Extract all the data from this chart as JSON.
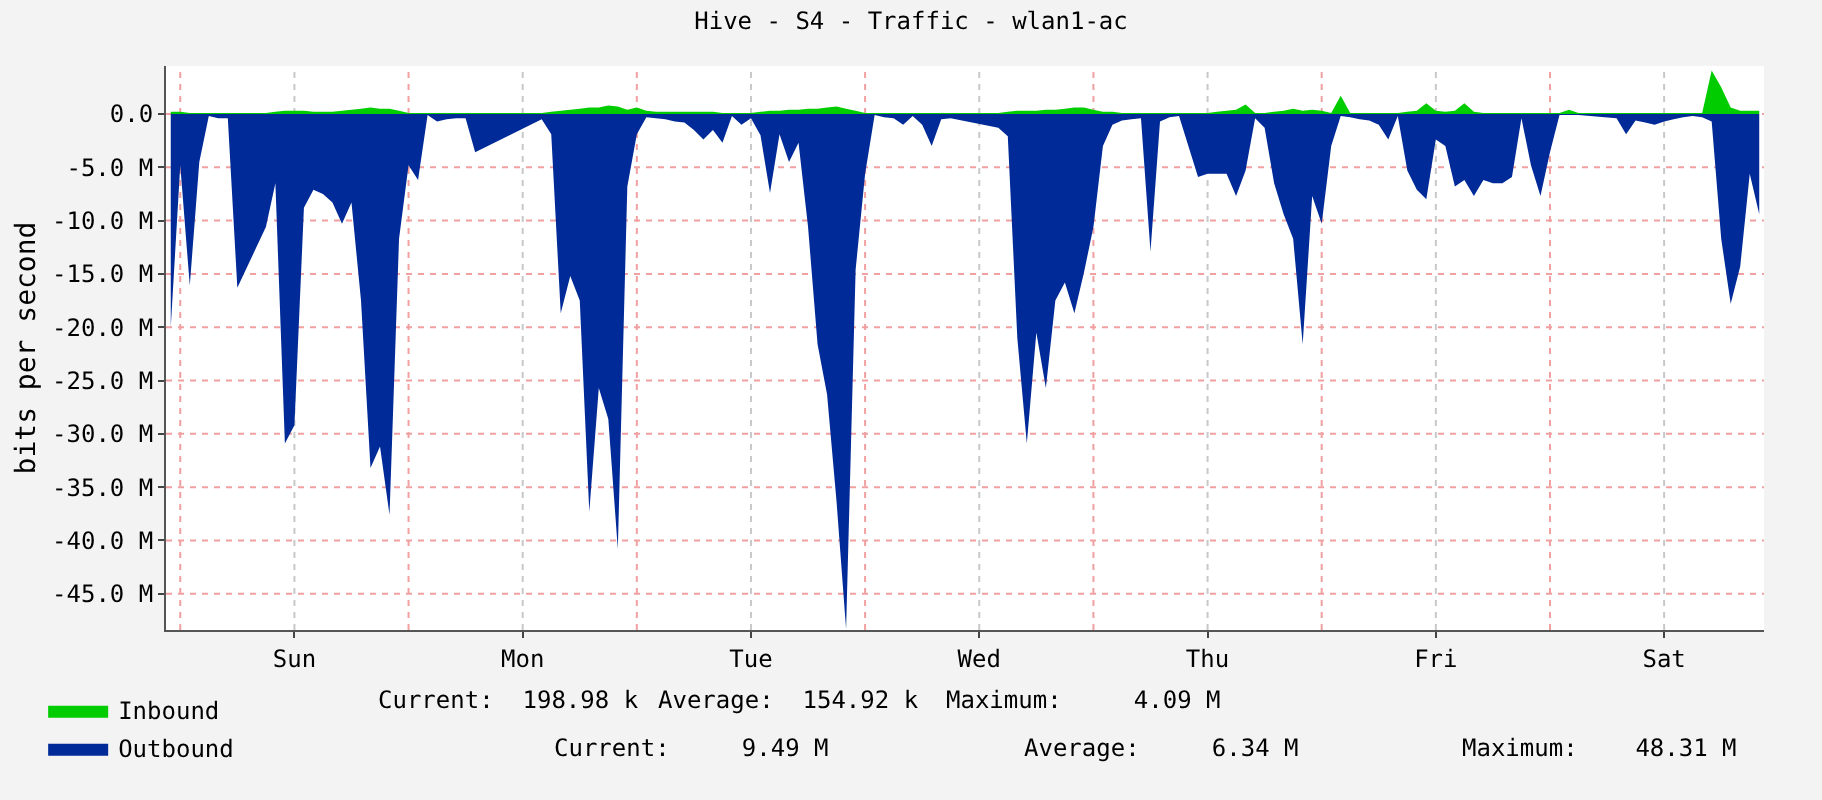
{
  "chart_data": {
    "type": "area",
    "title": "Hive - S4 - Traffic - wlan1-ac",
    "ylabel": "bits per second",
    "ylim": [
      -48.4,
      4.5
    ],
    "categories": [
      null,
      null,
      null,
      null,
      null,
      null,
      null,
      null,
      null,
      null,
      null,
      null,
      null,
      "Sun",
      null,
      null,
      null,
      null,
      null,
      null,
      null,
      null,
      null,
      null,
      null,
      null,
      null,
      null,
      null,
      null,
      null,
      null,
      null,
      null,
      null,
      null,
      null,
      "Mon",
      null,
      null,
      null,
      null,
      null,
      null,
      null,
      null,
      null,
      null,
      null,
      null,
      null,
      null,
      null,
      null,
      null,
      null,
      null,
      null,
      null,
      null,
      null,
      "Tue",
      null,
      null,
      null,
      null,
      null,
      null,
      null,
      null,
      null,
      null,
      null,
      null,
      null,
      null,
      null,
      null,
      null,
      null,
      null,
      null,
      null,
      null,
      null,
      "Wed",
      null,
      null,
      null,
      null,
      null,
      null,
      null,
      null,
      null,
      null,
      null,
      null,
      null,
      null,
      null,
      null,
      null,
      null,
      null,
      null,
      null,
      null,
      null,
      "Thu",
      null,
      null,
      null,
      null,
      null,
      null,
      null,
      null,
      null,
      null,
      null,
      null,
      null,
      null,
      null,
      null,
      null,
      null,
      null,
      null,
      null,
      null,
      null,
      "Fri",
      null,
      null,
      null,
      null,
      null,
      null,
      null,
      null,
      null,
      null,
      null,
      null,
      null,
      null,
      null,
      null,
      null,
      null,
      null,
      null,
      null,
      null,
      null,
      "Sat",
      null,
      null,
      null,
      null,
      null,
      null,
      null,
      null,
      null,
      null
    ],
    "yticks": [
      {
        "value": 0,
        "label": "0.0"
      },
      {
        "value": -5,
        "label": "-5.0 M"
      },
      {
        "value": -10,
        "label": "-10.0 M"
      },
      {
        "value": -15,
        "label": "-15.0 M"
      },
      {
        "value": -20,
        "label": "-20.0 M"
      },
      {
        "value": -25,
        "label": "-25.0 M"
      },
      {
        "value": -30,
        "label": "-30.0 M"
      },
      {
        "value": -35,
        "label": "-35.0 M"
      },
      {
        "value": -40,
        "label": "-40.0 M"
      },
      {
        "value": -45,
        "label": "-45.0 M"
      }
    ],
    "grid": true,
    "legend": "bottom",
    "series": [
      {
        "name": "Inbound",
        "color": "#00cc00",
        "values": [
          0.2,
          0.2,
          0.1,
          0.1,
          0.1,
          0.1,
          0.1,
          0.1,
          null,
          null,
          0.1,
          0.2,
          0.3,
          0.3,
          0.3,
          0.2,
          0.2,
          0.2,
          0.3,
          0.4,
          0.5,
          0.6,
          0.5,
          0.5,
          0.3,
          0.1,
          0.1,
          0.1,
          0.1,
          0.1,
          0.1,
          0.1,
          0.1,
          null,
          null,
          null,
          null,
          null,
          null,
          0.1,
          0.2,
          0.3,
          0.4,
          0.5,
          0.6,
          0.6,
          0.8,
          0.7,
          0.4,
          0.6,
          0.3,
          0.2,
          0.2,
          0.2,
          0.2,
          0.2,
          0.2,
          0.2,
          0.1,
          0.1,
          0.1,
          0.1,
          0.2,
          0.3,
          0.3,
          0.4,
          0.4,
          0.5,
          0.5,
          0.6,
          0.7,
          0.5,
          0.3,
          0.1,
          0.1,
          0.1,
          0.1,
          0.1,
          0.1,
          0.1,
          0.1,
          0.1,
          0.1,
          null,
          null,
          null,
          null,
          0.1,
          0.2,
          0.3,
          0.3,
          0.3,
          0.4,
          0.4,
          0.5,
          0.6,
          0.6,
          0.4,
          0.2,
          0.2,
          0.1,
          0.1,
          0.1,
          0.1,
          0.1,
          0.1,
          0.1,
          null,
          0.1,
          0.1,
          0.2,
          0.3,
          0.4,
          0.9,
          0.1,
          0.1,
          0.2,
          0.3,
          0.5,
          0.3,
          0.4,
          0.3,
          0.1,
          1.7,
          0.1,
          0.1,
          0.1,
          0.1,
          0.1,
          0.1,
          0.2,
          0.3,
          1.0,
          0.3,
          0.2,
          0.3,
          1.0,
          0.2,
          0.1,
          0.1,
          0.1,
          0.1,
          0.1,
          0.1,
          0.1,
          0.1,
          0.1,
          0.4,
          0.1,
          null,
          null,
          null,
          0.1,
          0.1,
          0.1,
          0.1,
          0.1,
          0.1,
          0.1,
          0.1,
          0.1,
          0.1,
          4.09,
          2.5,
          0.6,
          0.3,
          0.3,
          0.3
        ]
      },
      {
        "name": "Outbound",
        "color": "#002a97",
        "values": [
          -20,
          -4.8,
          -16.1,
          -4.5,
          -0.2,
          -0.4,
          -0.4,
          -16.3,
          null,
          null,
          -10.6,
          -6.5,
          -30.9,
          -29.2,
          -8.8,
          -7.1,
          -7.5,
          -8.3,
          -10.3,
          -8.3,
          -17.5,
          -33.2,
          -31.2,
          -37.6,
          -11.7,
          -4.8,
          -6.2,
          -0.1,
          -0.7,
          -0.5,
          -0.4,
          -0.4,
          -3.6,
          null,
          null,
          null,
          null,
          null,
          null,
          -0.5,
          -1.9,
          -18.7,
          -15.2,
          -17.5,
          -37.3,
          -25.7,
          -28.6,
          -40.8,
          -6.8,
          -1.9,
          -0.3,
          -0.4,
          -0.5,
          -0.7,
          -0.8,
          -1.5,
          -2.4,
          -1.5,
          -2.7,
          -0.2,
          -1.0,
          -0.4,
          -2.0,
          -7.4,
          -1.9,
          -4.5,
          -2.7,
          -10.6,
          -21.6,
          -26.3,
          -36.4,
          -48.31,
          -14.6,
          -5.6,
          -0.1,
          -0.3,
          -0.4,
          -1.0,
          -0.2,
          -1.0,
          -3.0,
          -0.5,
          -0.4,
          null,
          null,
          null,
          null,
          -1.3,
          -2.1,
          -21.0,
          -30.9,
          -20.5,
          -25.7,
          -17.5,
          -15.8,
          -18.7,
          -14.9,
          -10.6,
          -3.0,
          -1.0,
          -0.6,
          -0.5,
          -0.4,
          -12.9,
          -0.7,
          -0.3,
          -0.2,
          null,
          -5.9,
          -5.6,
          -5.6,
          -5.6,
          -7.7,
          -5.3,
          -0.4,
          -1.3,
          -6.5,
          -9.4,
          -11.7,
          -21.6,
          -7.7,
          -10.3,
          -3.0,
          -0.2,
          -0.3,
          -0.5,
          -0.6,
          -1.0,
          -2.4,
          -0.2,
          -5.3,
          -7.1,
          -8.0,
          -2.4,
          -3.0,
          -6.8,
          -6.2,
          -7.7,
          -6.2,
          -6.5,
          -6.5,
          -5.9,
          -0.4,
          -4.8,
          -7.7,
          -3.6,
          -0.1,
          -0.1,
          -0.1,
          null,
          null,
          null,
          -0.4,
          -1.9,
          -0.6,
          -0.8,
          -1.0,
          -0.7,
          -0.5,
          -0.3,
          -0.2,
          -0.3,
          -0.7,
          -11.7,
          -17.8,
          -14.3,
          -5.6,
          -9.4
        ]
      }
    ],
    "annotations": [
      "Current:  198.98 k",
      "Average:  154.92 k",
      "Maximum:     4.09 M",
      "Current:     9.49 M",
      "Average:     6.34 M",
      "Maximum:    48.31 M"
    ]
  }
}
